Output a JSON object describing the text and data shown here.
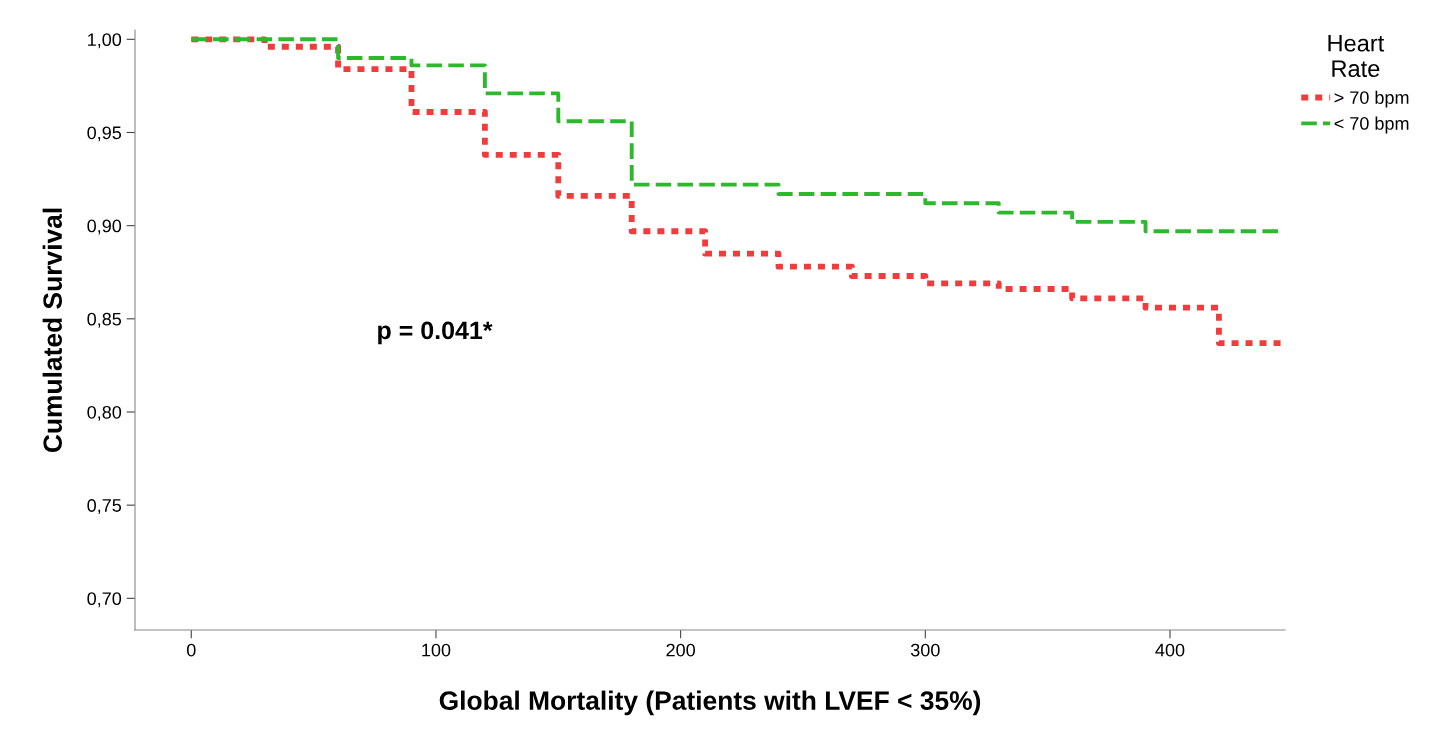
{
  "chart_data": {
    "type": "step",
    "xlabel": "Global Mortality (Patients with LVEF < 35%)",
    "ylabel": "Cumulated Survival",
    "legend_title": "Heart\nRate",
    "legend": "top right",
    "grid": false,
    "marker": "none",
    "xlim": [
      -23,
      447
    ],
    "xticks": [
      0,
      100,
      200,
      300,
      400
    ],
    "ylim": [
      0.683,
      1.005
    ],
    "yticks": [
      {
        "value": 0.7,
        "label": "0,70"
      },
      {
        "value": 0.75,
        "label": "0,75"
      },
      {
        "value": 0.8,
        "label": "0,80"
      },
      {
        "value": 0.85,
        "label": "0,85"
      },
      {
        "value": 0.9,
        "label": "0,90"
      },
      {
        "value": 0.95,
        "label": "0,95"
      },
      {
        "value": 1.0,
        "label": "1,00"
      }
    ],
    "annotations": [
      "p = 0.041*"
    ],
    "series": [
      {
        "name": "> 70 bpm",
        "color": "#f03c3c",
        "line_style": "dotted",
        "x": [
          0,
          30,
          60,
          90,
          120,
          150,
          180,
          210,
          240,
          270,
          300,
          330,
          360,
          390,
          420,
          446
        ],
        "values": [
          1.0,
          0.996,
          0.984,
          0.961,
          0.938,
          0.916,
          0.897,
          0.885,
          0.878,
          0.873,
          0.869,
          0.866,
          0.861,
          0.856,
          0.837,
          0.837
        ]
      },
      {
        "name": "< 70 bpm",
        "color": "#2eb82e",
        "line_style": "dashed",
        "x": [
          0,
          60,
          90,
          120,
          150,
          180,
          240,
          300,
          330,
          360,
          390,
          446
        ],
        "values": [
          1.0,
          0.99,
          0.986,
          0.971,
          0.956,
          0.922,
          0.917,
          0.912,
          0.907,
          0.902,
          0.897,
          0.897
        ]
      }
    ]
  }
}
